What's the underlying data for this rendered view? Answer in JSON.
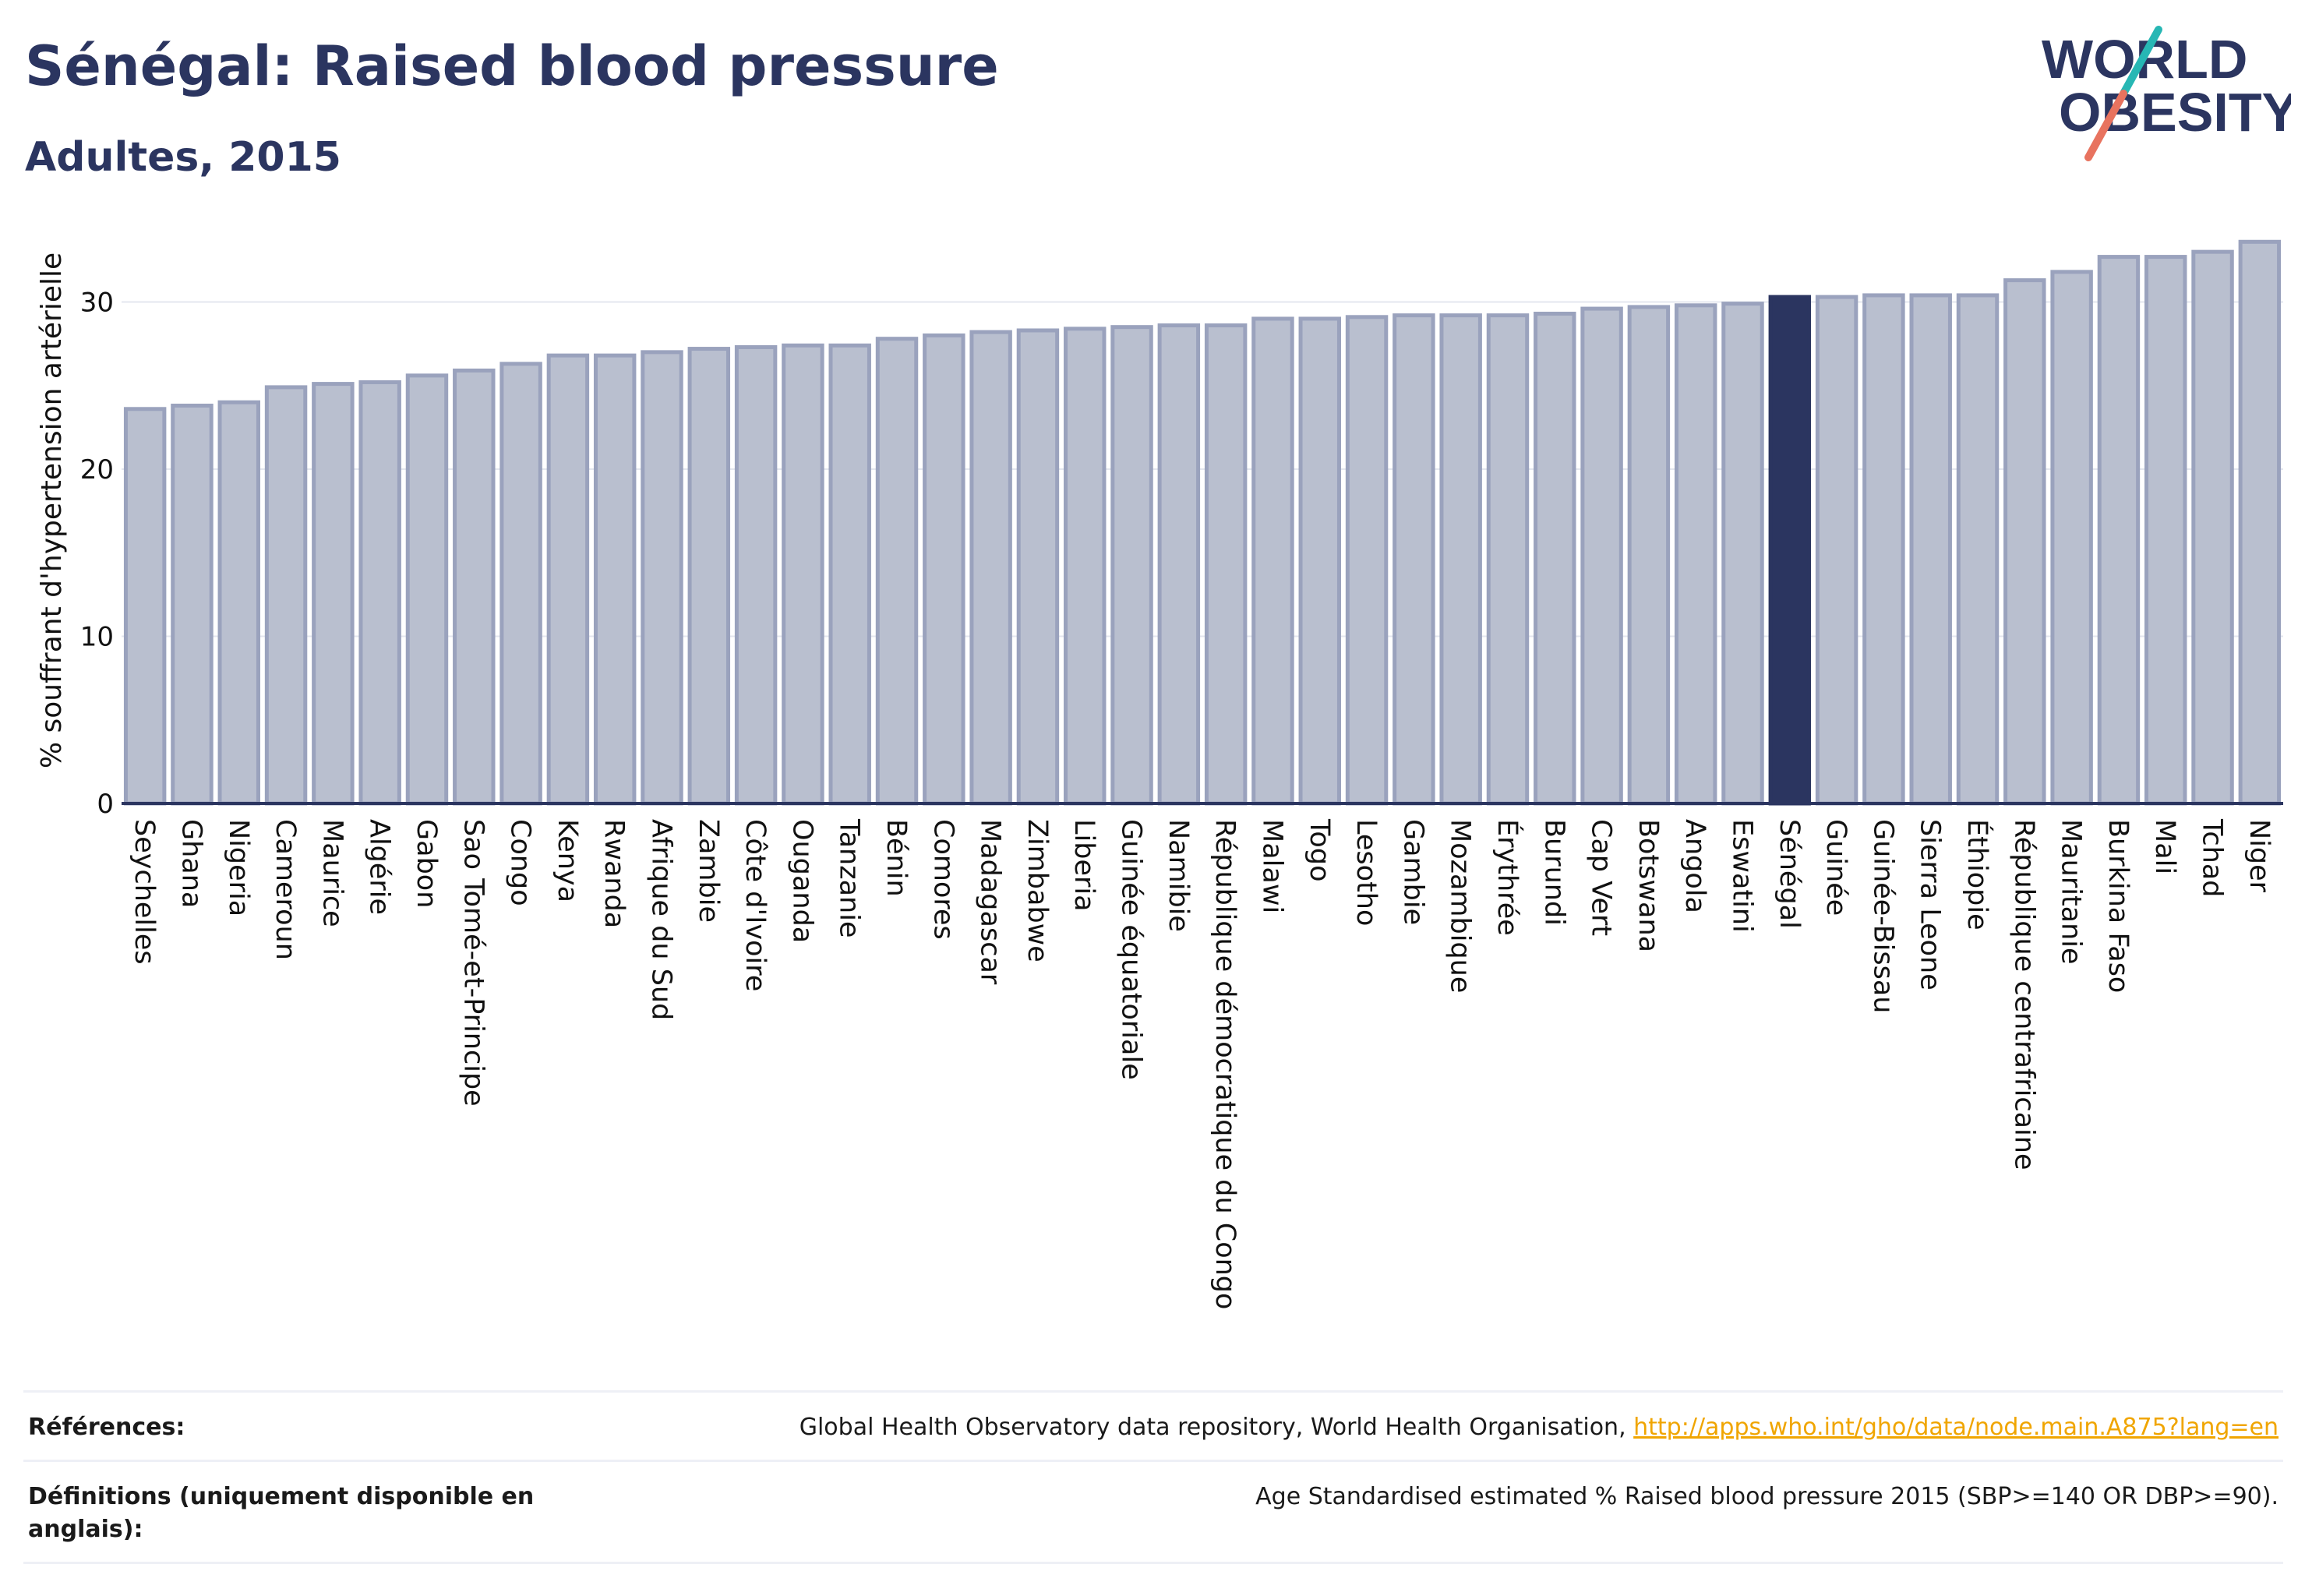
{
  "header": {
    "title": "Sénégal: Raised blood pressure",
    "subtitle": "Adultes, 2015"
  },
  "logo": {
    "line1": "WORLD",
    "line2": "OBESITY"
  },
  "colors": {
    "bar": "#b9bfcf",
    "bar_border": "#9aa2bd",
    "highlight": "#2b3560",
    "title": "#2b3560",
    "grid": "#e4e7ef",
    "link": "#f0a500",
    "logo_teal": "#27b7b4",
    "logo_coral": "#e8735f"
  },
  "chart_data": {
    "type": "bar",
    "ylabel": "% souffrant d'hypertension artérielle",
    "ylim": [
      0,
      35
    ],
    "yticks": [
      0,
      10,
      20,
      30
    ],
    "grid": true,
    "highlight": "Sénégal",
    "categories": [
      "Seychelles",
      "Ghana",
      "Nigeria",
      "Cameroun",
      "Maurice",
      "Algérie",
      "Gabon",
      "Sao Tomé-et-Principe",
      "Congo",
      "Kenya",
      "Rwanda",
      "Afrique du Sud",
      "Zambie",
      "Côte d'Ivoire",
      "Ouganda",
      "Tanzanie",
      "Bénin",
      "Comores",
      "Madagascar",
      "Zimbabwe",
      "Liberia",
      "Guinée équatoriale",
      "Namibie",
      "République démocratique du Congo",
      "Malawi",
      "Togo",
      "Lesotho",
      "Gambie",
      "Mozambique",
      "Érythrée",
      "Burundi",
      "Cap Vert",
      "Botswana",
      "Angola",
      "Eswatini",
      "Sénégal",
      "Guinée",
      "Guinée-Bissau",
      "Sierra Leone",
      "Éthiopie",
      "République centrafricaine",
      "Mauritanie",
      "Burkina Faso",
      "Mali",
      "Tchad",
      "Niger"
    ],
    "values": [
      23.6,
      23.8,
      24.0,
      24.9,
      25.1,
      25.2,
      25.6,
      25.9,
      26.3,
      26.8,
      26.8,
      27.0,
      27.2,
      27.3,
      27.4,
      27.4,
      27.8,
      28.0,
      28.2,
      28.3,
      28.4,
      28.5,
      28.6,
      28.6,
      29.0,
      29.0,
      29.1,
      29.2,
      29.2,
      29.2,
      29.3,
      29.6,
      29.7,
      29.8,
      29.9,
      30.3,
      30.3,
      30.4,
      30.4,
      30.4,
      31.3,
      31.8,
      32.7,
      32.7,
      33.0,
      33.6
    ]
  },
  "footer": {
    "references_label": "Références:",
    "references_text": "Global Health Observatory data repository, World Health Organisation, ",
    "references_link": "http://apps.who.int/gho/data/node.main.A875?lang=en",
    "definitions_label": "Définitions (uniquement disponible en anglais):",
    "definitions_text": "Age Standardised estimated % Raised blood pressure 2015 (SBP>=140 OR DBP>=90)."
  }
}
